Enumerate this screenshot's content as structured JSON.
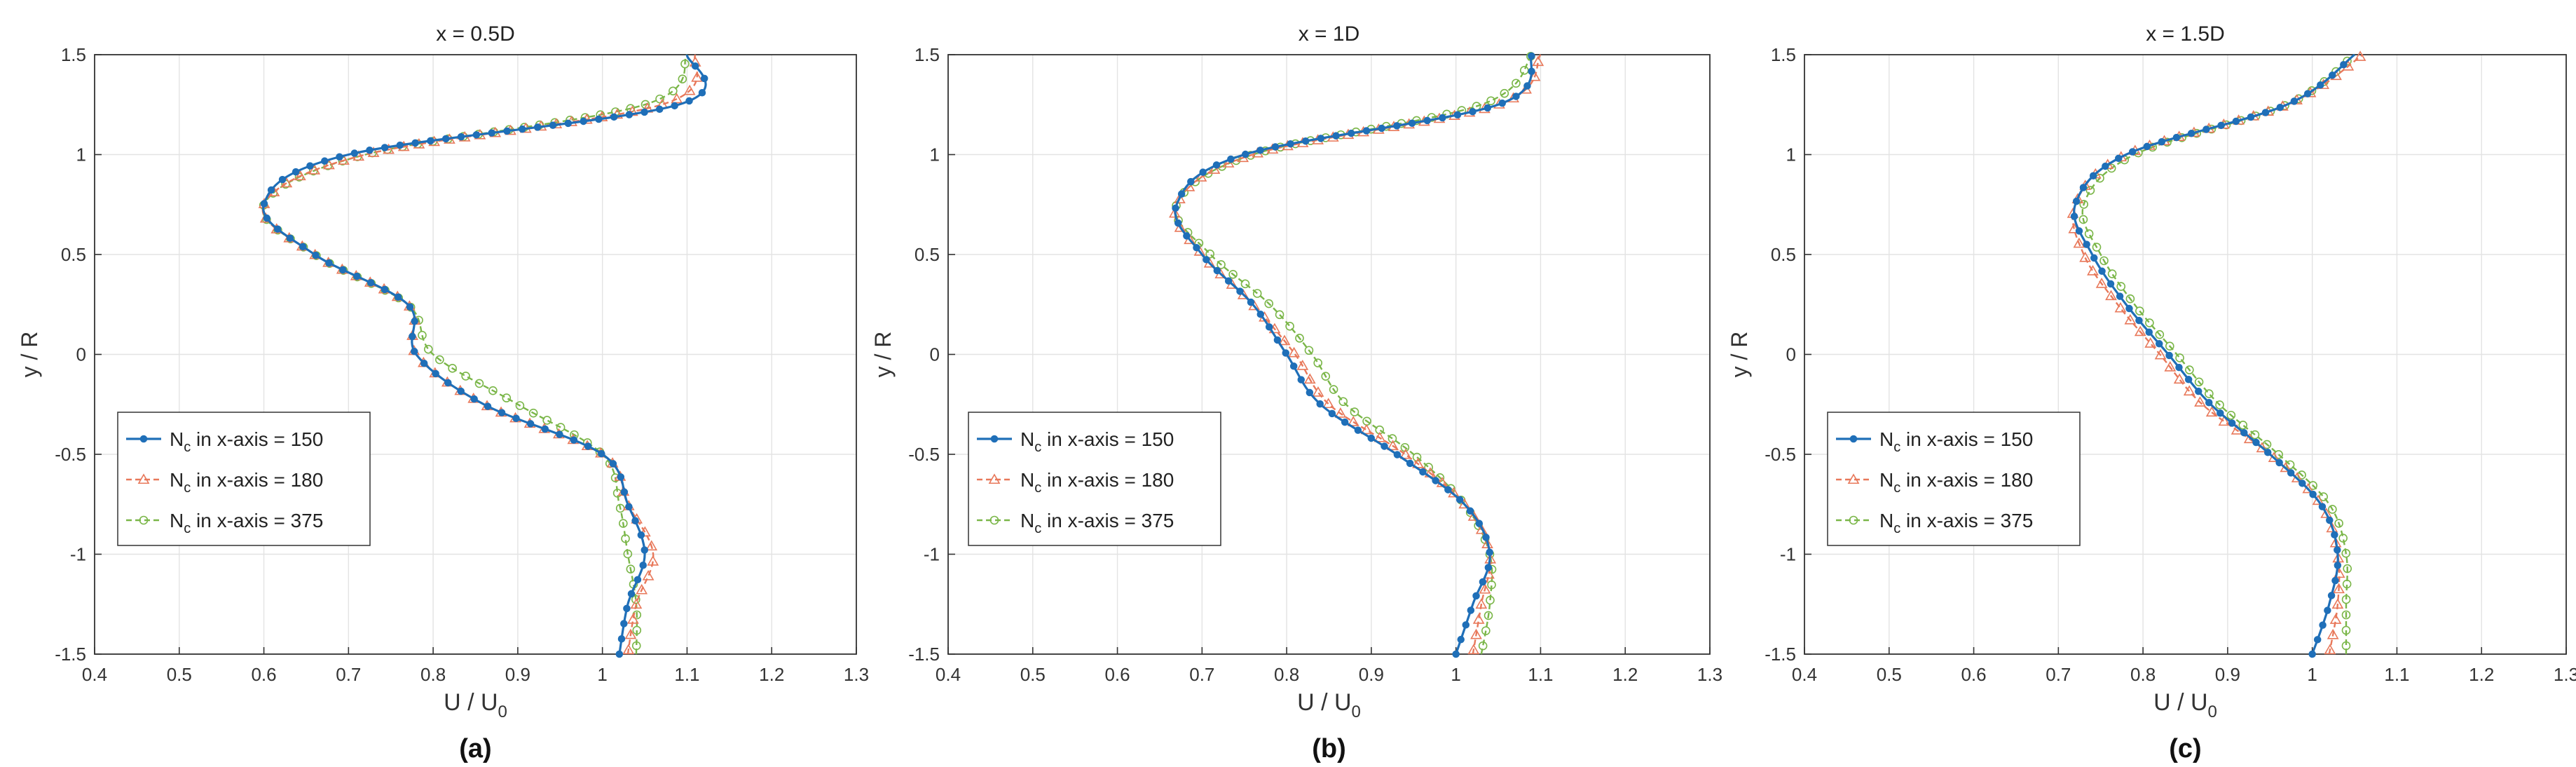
{
  "chart_data": [
    {
      "type": "line",
      "panel_label": "(a)",
      "title": "x = 0.5D",
      "xlabel": "U / U",
      "xlabel_sub": "0",
      "ylabel": "y / R",
      "xlim": [
        0.4,
        1.3
      ],
      "ylim": [
        -1.5,
        1.5
      ],
      "xticks": [
        0.4,
        0.5,
        0.6,
        0.7,
        0.8,
        0.9,
        1,
        1.1,
        1.2,
        1.3
      ],
      "yticks": [
        -1.5,
        -1,
        -0.5,
        0,
        0.5,
        1,
        1.5
      ],
      "grid": true,
      "legend_position": "lower-left",
      "y": [
        -1.5,
        -1.25,
        -1.0,
        -0.75,
        -0.5,
        -0.25,
        0.0,
        0.25,
        0.5,
        0.75,
        1.0,
        1.25,
        1.5
      ],
      "series": [
        {
          "name": "N in x-axis = 150",
          "name_sub": "c",
          "name_main": "N",
          "name_rest": " in x-axis = 150",
          "color": "#1f6fb8",
          "marker": "dot",
          "dash": "",
          "values": [
            1.02,
            1.03,
            1.05,
            1.03,
            1.0,
            0.86,
            0.78,
            0.77,
            0.66,
            0.6,
            0.7,
            1.09,
            1.1
          ]
        },
        {
          "name": "N in x-axis = 180",
          "name_main": "N",
          "name_sub": "c",
          "name_rest": " in x-axis = 180",
          "color": "#e8785a",
          "marker": "triangle",
          "dash": "8,5",
          "values": [
            1.03,
            1.04,
            1.06,
            1.03,
            1.0,
            0.86,
            0.78,
            0.77,
            0.66,
            0.6,
            0.72,
            1.07,
            1.11
          ]
        },
        {
          "name": "N in x-axis = 375",
          "name_main": "N",
          "name_sub": "c",
          "name_rest": " in x-axis = 375",
          "color": "#7ab648",
          "marker": "circle",
          "dash": "8,5",
          "values": [
            1.04,
            1.04,
            1.03,
            1.02,
            1.0,
            0.9,
            0.8,
            0.77,
            0.66,
            0.6,
            0.72,
            1.05,
            1.1
          ]
        }
      ]
    },
    {
      "type": "line",
      "panel_label": "(b)",
      "title": "x = 1D",
      "xlabel": "U / U",
      "xlabel_sub": "0",
      "ylabel": "y / R",
      "xlim": [
        0.4,
        1.3
      ],
      "ylim": [
        -1.5,
        1.5
      ],
      "xticks": [
        0.4,
        0.5,
        0.6,
        0.7,
        0.8,
        0.9,
        1,
        1.1,
        1.2,
        1.3
      ],
      "yticks": [
        -1.5,
        -1,
        -0.5,
        0,
        0.5,
        1,
        1.5
      ],
      "grid": true,
      "legend_position": "lower-left",
      "y": [
        -1.5,
        -1.25,
        -1.0,
        -0.75,
        -0.5,
        -0.25,
        0.0,
        0.25,
        0.5,
        0.75,
        1.0,
        1.25,
        1.5
      ],
      "series": [
        {
          "name": "N in x-axis = 150",
          "name_main": "N",
          "name_sub": "c",
          "name_rest": " in x-axis = 150",
          "color": "#1f6fb8",
          "marker": "dot",
          "dash": "",
          "values": [
            1.0,
            1.02,
            1.04,
            1.01,
            0.93,
            0.84,
            0.8,
            0.76,
            0.7,
            0.67,
            0.75,
            1.05,
            1.09
          ]
        },
        {
          "name": "N in x-axis = 180",
          "name_main": "N",
          "name_sub": "c",
          "name_rest": " in x-axis = 180",
          "color": "#e8785a",
          "marker": "triangle",
          "dash": "8,5",
          "values": [
            1.02,
            1.03,
            1.04,
            1.01,
            0.94,
            0.85,
            0.81,
            0.76,
            0.7,
            0.67,
            0.76,
            1.05,
            1.1
          ]
        },
        {
          "name": "N in x-axis = 375",
          "name_main": "N",
          "name_sub": "c",
          "name_rest": " in x-axis = 375",
          "color": "#7ab648",
          "marker": "circle",
          "dash": "8,5",
          "values": [
            1.03,
            1.04,
            1.04,
            1.01,
            0.95,
            0.87,
            0.83,
            0.78,
            0.71,
            0.67,
            0.76,
            1.03,
            1.09
          ]
        }
      ]
    },
    {
      "type": "line",
      "panel_label": "(c)",
      "title": "x = 1.5D",
      "xlabel": "U / U",
      "xlabel_sub": "0",
      "ylabel": "y / R",
      "xlim": [
        0.4,
        1.3
      ],
      "ylim": [
        -1.5,
        1.5
      ],
      "xticks": [
        0.4,
        0.5,
        0.6,
        0.7,
        0.8,
        0.9,
        1,
        1.1,
        1.2,
        1.3
      ],
      "yticks": [
        -1.5,
        -1,
        -0.5,
        0,
        0.5,
        1,
        1.5
      ],
      "grid": true,
      "legend_position": "lower-left",
      "y": [
        -1.5,
        -1.25,
        -1.0,
        -0.75,
        -0.5,
        -0.25,
        0.0,
        0.25,
        0.5,
        0.75,
        1.0,
        1.25,
        1.5
      ],
      "series": [
        {
          "name": "N in x-axis = 150",
          "name_main": "N",
          "name_sub": "c",
          "name_rest": " in x-axis = 150",
          "color": "#1f6fb8",
          "marker": "dot",
          "dash": "",
          "values": [
            1.0,
            1.02,
            1.03,
            1.01,
            0.95,
            0.88,
            0.83,
            0.78,
            0.74,
            0.72,
            0.78,
            0.97,
            1.05
          ]
        },
        {
          "name": "N in x-axis = 180",
          "name_main": "N",
          "name_sub": "c",
          "name_rest": " in x-axis = 180",
          "color": "#e8785a",
          "marker": "triangle",
          "dash": "8,5",
          "values": [
            1.02,
            1.03,
            1.03,
            1.01,
            0.95,
            0.87,
            0.82,
            0.77,
            0.73,
            0.72,
            0.78,
            0.97,
            1.06
          ]
        },
        {
          "name": "N in x-axis = 375",
          "name_main": "N",
          "name_sub": "c",
          "name_rest": " in x-axis = 375",
          "color": "#7ab648",
          "marker": "circle",
          "dash": "8,5",
          "values": [
            1.04,
            1.04,
            1.04,
            1.02,
            0.96,
            0.89,
            0.84,
            0.79,
            0.75,
            0.73,
            0.79,
            0.97,
            1.05
          ]
        }
      ]
    }
  ]
}
